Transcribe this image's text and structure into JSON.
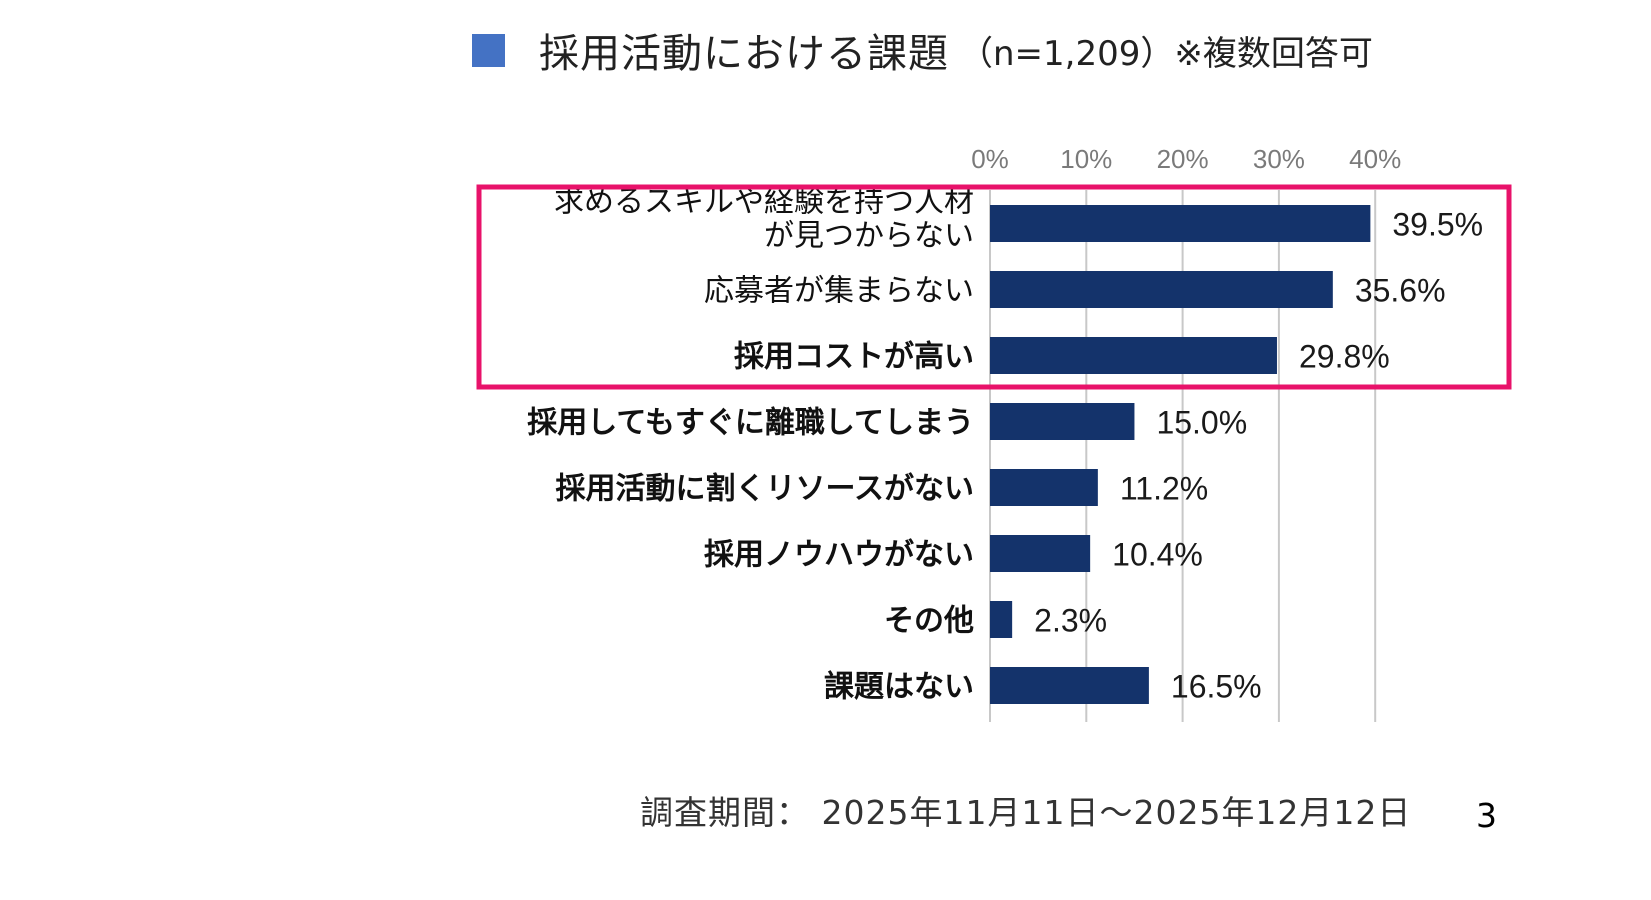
{
  "header": {
    "title": "採用活動における課題",
    "sample": "（n=1,209）※複数回答可"
  },
  "footer": {
    "survey_period": "調査期間： 2025年11月11日～2025年12月12日",
    "page_number": "3"
  },
  "colors": {
    "legend": "#4472C4",
    "bar": "#14336B",
    "highlight_box": "#E8126A",
    "grid": "#C8C8C8"
  },
  "chart_data": {
    "type": "bar",
    "orientation": "horizontal",
    "title": "採用活動における課題",
    "categories": [
      [
        "求めるスキルや経験を持つ人材",
        "が見つからない"
      ],
      [
        "応募者が集まらない"
      ],
      [
        "採用コストが高い"
      ],
      [
        "採用してもすぐに離職してしまう"
      ],
      [
        "採用活動に割くリソースがない"
      ],
      [
        "採用ノウハウがない"
      ],
      [
        "その他"
      ],
      [
        "課題はない"
      ]
    ],
    "category_bold": [
      false,
      false,
      true,
      true,
      true,
      true,
      true,
      true
    ],
    "values": [
      39.5,
      35.6,
      29.8,
      15.0,
      11.2,
      10.4,
      2.3,
      16.5
    ],
    "value_labels": [
      "39.5%",
      "35.6%",
      "29.8%",
      "15.0%",
      "11.2%",
      "10.4%",
      "2.3%",
      "16.5%"
    ],
    "xlim": [
      0,
      40
    ],
    "ticks": [
      0,
      10,
      20,
      30,
      40
    ],
    "tick_labels": [
      "0%",
      "10%",
      "20%",
      "30%",
      "40%"
    ],
    "grid": true,
    "highlighted_categories": [
      0,
      1,
      2
    ]
  }
}
